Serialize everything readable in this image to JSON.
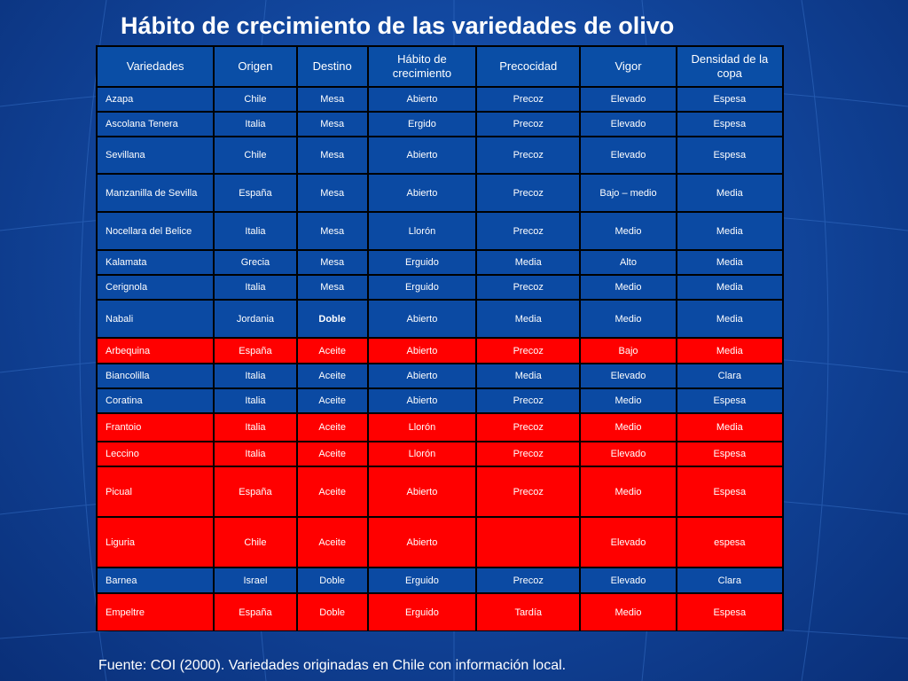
{
  "slide": {
    "title": "Hábito de crecimiento de las variedades de olivo",
    "footer": "Fuente: COI (2000). Variedades originadas en Chile con información local."
  },
  "table": {
    "headers": [
      "Variedades",
      "Origen",
      "Destino",
      "Hábito de crecimiento",
      "Precocidad",
      "Vigor",
      "Densidad de la copa"
    ],
    "rows": [
      {
        "cells": [
          "Azapa",
          "Chile",
          "Mesa",
          "Abierto",
          "Precoz",
          "Elevado",
          "Espesa"
        ],
        "highlight": false
      },
      {
        "cells": [
          "Ascolana Tenera",
          "Italia",
          "Mesa",
          "Ergido",
          "Precoz",
          "Elevado",
          "Espesa"
        ],
        "highlight": false
      },
      {
        "cells": [
          "Sevillana",
          "Chile",
          "Mesa",
          "Abierto",
          "Precoz",
          "Elevado",
          "Espesa"
        ],
        "highlight": false
      },
      {
        "cells": [
          "Manzanilla de Sevilla",
          "España",
          "Mesa",
          "Abierto",
          "Precoz",
          "Bajo – medio",
          "Media"
        ],
        "highlight": false
      },
      {
        "cells": [
          "Nocellara del Belice",
          "Italia",
          "Mesa",
          "Llorón",
          "Precoz",
          "Medio",
          "Media"
        ],
        "highlight": false
      },
      {
        "cells": [
          "Kalamata",
          "Grecia",
          "Mesa",
          "Erguido",
          "Media",
          "Alto",
          "Media"
        ],
        "highlight": false
      },
      {
        "cells": [
          "Cerignola",
          "Italia",
          "Mesa",
          "Erguido",
          "Precoz",
          "Medio",
          "Media"
        ],
        "highlight": false
      },
      {
        "cells": [
          "Nabali",
          "Jordania",
          "Doble",
          "Abierto",
          "Media",
          "Medio",
          "Media"
        ],
        "highlight": false,
        "bold_col": 2
      },
      {
        "cells": [
          "Arbequina",
          "España",
          "Aceite",
          "Abierto",
          "Precoz",
          "Bajo",
          "Media"
        ],
        "highlight": true
      },
      {
        "cells": [
          "Biancolilla",
          "Italia",
          "Aceite",
          "Abierto",
          "Media",
          "Elevado",
          "Clara"
        ],
        "highlight": false
      },
      {
        "cells": [
          "Coratina",
          "Italia",
          "Aceite",
          "Abierto",
          "Precoz",
          "Medio",
          "Espesa"
        ],
        "highlight": false
      },
      {
        "cells": [
          "Frantoio",
          "Italia",
          "Aceite",
          "Llorón",
          "Precoz",
          "Medio",
          "Media"
        ],
        "highlight": true
      },
      {
        "cells": [
          "Leccino",
          "Italia",
          "Aceite",
          "Llorón",
          "Precoz",
          "Elevado",
          "Espesa"
        ],
        "highlight": true
      },
      {
        "cells": [
          "Picual",
          "España",
          "Aceite",
          "Abierto",
          "Precoz",
          "Medio",
          "Espesa"
        ],
        "highlight": true
      },
      {
        "cells": [
          "Liguria",
          "Chile",
          "Aceite",
          "Abierto",
          "",
          "Elevado",
          "espesa"
        ],
        "highlight": true
      },
      {
        "cells": [
          "Barnea",
          "Israel",
          "Doble",
          "Erguido",
          "Precoz",
          "Elevado",
          "Clara"
        ],
        "highlight": false
      },
      {
        "cells": [
          "Empeltre",
          "España",
          "Doble",
          "Erguido",
          "Tardía",
          "Medio",
          "Espesa"
        ],
        "highlight": true
      }
    ]
  },
  "colors": {
    "background": "#1248a0",
    "cell_blue": "#0b4aa3",
    "cell_red": "#ff0000",
    "grid": "#000000",
    "text": "#ffffff"
  }
}
